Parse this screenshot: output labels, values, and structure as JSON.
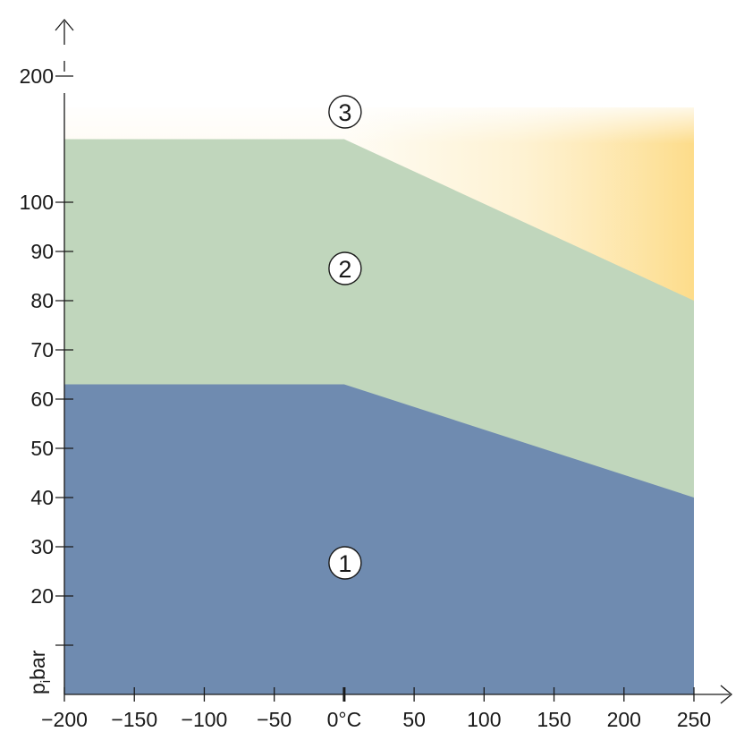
{
  "chart_data": {
    "type": "area",
    "x_tick_labels": [
      "−200",
      "−150",
      "−100",
      "−50",
      "0°C",
      "50",
      "100",
      "150",
      "200",
      "250"
    ],
    "x_tick_values": [
      -200,
      -150,
      -100,
      -50,
      0,
      50,
      100,
      150,
      200,
      250
    ],
    "y_tick_labels": [
      "",
      "20",
      "30",
      "40",
      "50",
      "60",
      "70",
      "80",
      "90",
      "100",
      "200"
    ],
    "y_tick_values": [
      10,
      20,
      30,
      40,
      50,
      60,
      70,
      80,
      90,
      100,
      200
    ],
    "ylabel_main": "p",
    "ylabel_sub": "i",
    "ylabel_unit": "bar",
    "xlim": [
      -200,
      250
    ],
    "series": [
      {
        "name": "1",
        "x": [
          -200,
          0,
          250
        ],
        "y": [
          63,
          63,
          40
        ],
        "color": "#6f8bb0"
      },
      {
        "name": "2",
        "x": [
          -200,
          0,
          250
        ],
        "y": [
          150,
          150,
          80
        ],
        "color": "#c0d6bc"
      },
      {
        "name": "3",
        "x": [
          -200,
          250
        ],
        "y": [
          200,
          200
        ],
        "color": "#fde8b0"
      }
    ],
    "zone_markers": [
      {
        "label": "1",
        "x": 0,
        "y": 25
      },
      {
        "label": "2",
        "x": 0,
        "y": 86
      },
      {
        "label": "3",
        "x": 0,
        "y": 170
      }
    ],
    "grid": false
  }
}
